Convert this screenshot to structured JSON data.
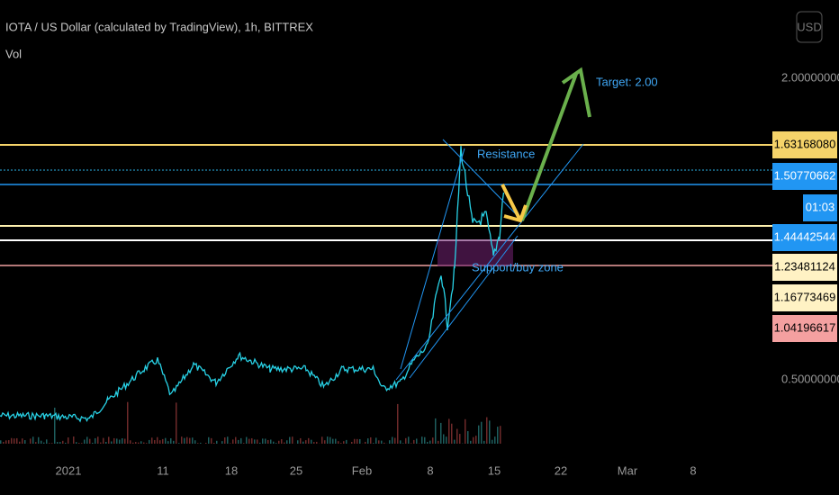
{
  "header": {
    "title": "IOTA / US Dollar (calculated by TradingView), 1h, BITTREX",
    "indicator": "Vol",
    "currency": "USD"
  },
  "price_axis": {
    "labels": [
      "2.00000000",
      "0.50000000"
    ],
    "markers": [
      "1.63168080",
      "1.50770662",
      "01:03",
      "1.44442544",
      "1.23481124",
      "1.16773469",
      "1.04196617"
    ]
  },
  "time_axis": {
    "labels": [
      "2021",
      "11",
      "18",
      "25",
      "Feb",
      "8",
      "15",
      "22",
      "Mar",
      "8"
    ]
  },
  "annotations": {
    "resistance": "Resistance",
    "target": "Target: 2.00",
    "support": "Support/buy zone"
  }
}
